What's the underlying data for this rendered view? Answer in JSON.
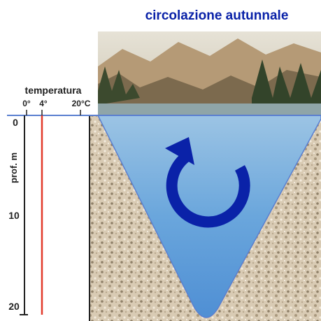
{
  "title": "circolazione autunnale",
  "temperature_axis": {
    "label": "temperatura",
    "ticks": [
      "0°",
      "4°",
      "20°C"
    ]
  },
  "depth_axis": {
    "label": "prof. m",
    "ticks": [
      "0",
      "10",
      "20"
    ]
  }
}
